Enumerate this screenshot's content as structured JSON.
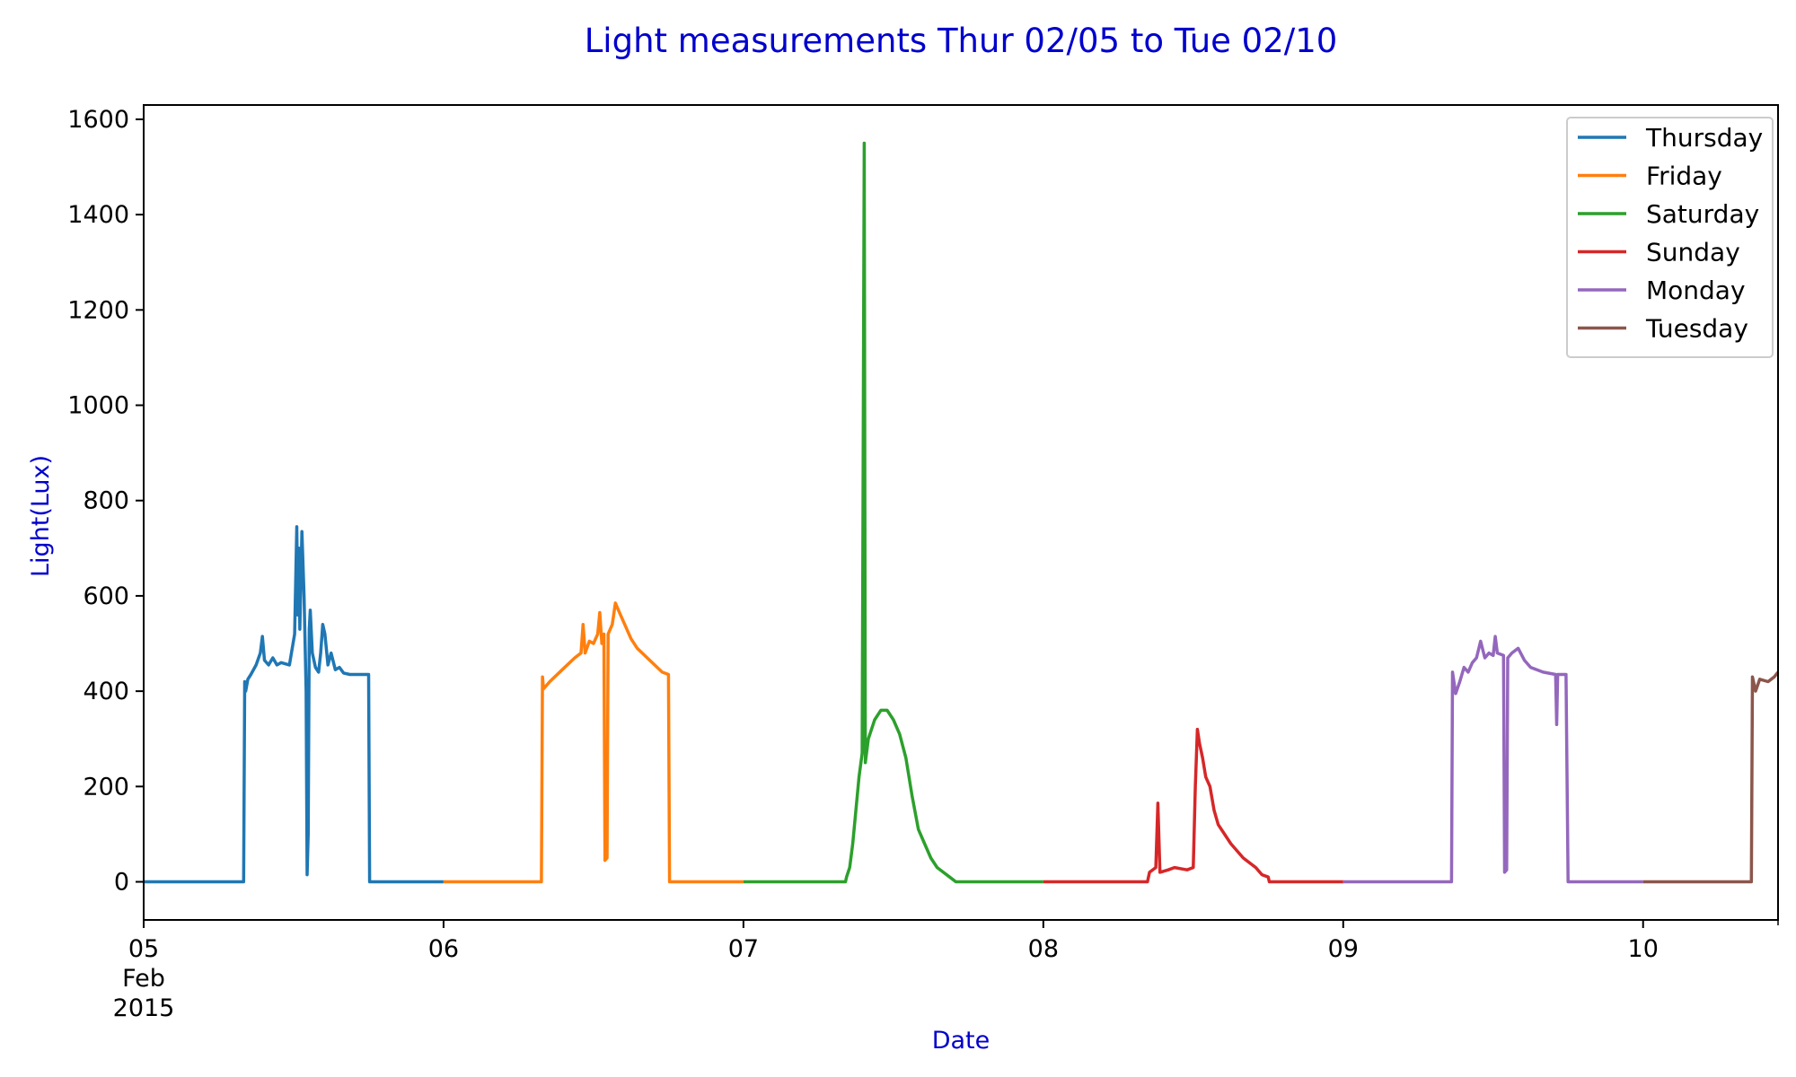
{
  "chart_data": {
    "type": "line",
    "title": "Light measurements Thur 02/05 to Tue 02/10",
    "xlabel": "Date",
    "ylabel": "Light(Lux)",
    "xlim": [
      "2015-02-05T00:00",
      "2015-02-10T10:48"
    ],
    "ylim": [
      -80,
      1630
    ],
    "yticks": [
      0,
      200,
      400,
      600,
      800,
      1000,
      1200,
      1400,
      1600
    ],
    "xticks": [
      {
        "value": "2015-02-05T00:00",
        "label": [
          "05",
          "Feb",
          "2015"
        ]
      },
      {
        "value": "2015-02-06T00:00",
        "label": [
          "06"
        ]
      },
      {
        "value": "2015-02-07T00:00",
        "label": [
          "07"
        ]
      },
      {
        "value": "2015-02-08T00:00",
        "label": [
          "08"
        ]
      },
      {
        "value": "2015-02-09T00:00",
        "label": [
          "09"
        ]
      },
      {
        "value": "2015-02-10T00:00",
        "label": [
          "10"
        ]
      }
    ],
    "grid": false,
    "legend": "top-right",
    "series": [
      {
        "name": "Thursday",
        "color": "#1f77b4",
        "points": [
          [
            "2015-02-05T00:00",
            0
          ],
          [
            "2015-02-05T08:00",
            0
          ],
          [
            "2015-02-05T08:05",
            420
          ],
          [
            "2015-02-05T08:10",
            400
          ],
          [
            "2015-02-05T08:20",
            425
          ],
          [
            "2015-02-05T08:35",
            435
          ],
          [
            "2015-02-05T09:00",
            455
          ],
          [
            "2015-02-05T09:20",
            480
          ],
          [
            "2015-02-05T09:30",
            515
          ],
          [
            "2015-02-05T09:40",
            465
          ],
          [
            "2015-02-05T10:00",
            455
          ],
          [
            "2015-02-05T10:20",
            470
          ],
          [
            "2015-02-05T10:40",
            455
          ],
          [
            "2015-02-05T11:00",
            460
          ],
          [
            "2015-02-05T11:40",
            455
          ],
          [
            "2015-02-05T12:05",
            520
          ],
          [
            "2015-02-05T12:15",
            745
          ],
          [
            "2015-02-05T12:20",
            560
          ],
          [
            "2015-02-05T12:25",
            700
          ],
          [
            "2015-02-05T12:30",
            530
          ],
          [
            "2015-02-05T12:40",
            735
          ],
          [
            "2015-02-05T12:50",
            600
          ],
          [
            "2015-02-05T13:00",
            400
          ],
          [
            "2015-02-05T13:05",
            15
          ],
          [
            "2015-02-05T13:10",
            100
          ],
          [
            "2015-02-05T13:15",
            530
          ],
          [
            "2015-02-05T13:20",
            570
          ],
          [
            "2015-02-05T13:30",
            480
          ],
          [
            "2015-02-05T13:45",
            450
          ],
          [
            "2015-02-05T14:00",
            440
          ],
          [
            "2015-02-05T14:10",
            480
          ],
          [
            "2015-02-05T14:20",
            540
          ],
          [
            "2015-02-05T14:30",
            520
          ],
          [
            "2015-02-05T14:45",
            455
          ],
          [
            "2015-02-05T15:00",
            480
          ],
          [
            "2015-02-05T15:20",
            445
          ],
          [
            "2015-02-05T15:40",
            450
          ],
          [
            "2015-02-05T16:00",
            438
          ],
          [
            "2015-02-05T16:30",
            435
          ],
          [
            "2015-02-05T18:00",
            435
          ],
          [
            "2015-02-05T18:05",
            0
          ],
          [
            "2015-02-06T00:00",
            0
          ]
        ]
      },
      {
        "name": "Friday",
        "color": "#ff7f0e",
        "points": [
          [
            "2015-02-06T00:00",
            0
          ],
          [
            "2015-02-06T07:50",
            0
          ],
          [
            "2015-02-06T07:55",
            430
          ],
          [
            "2015-02-06T08:00",
            405
          ],
          [
            "2015-02-06T08:30",
            420
          ],
          [
            "2015-02-06T09:30",
            445
          ],
          [
            "2015-02-06T10:30",
            470
          ],
          [
            "2015-02-06T11:00",
            480
          ],
          [
            "2015-02-06T11:10",
            540
          ],
          [
            "2015-02-06T11:20",
            480
          ],
          [
            "2015-02-06T11:40",
            505
          ],
          [
            "2015-02-06T12:00",
            500
          ],
          [
            "2015-02-06T12:20",
            520
          ],
          [
            "2015-02-06T12:30",
            565
          ],
          [
            "2015-02-06T12:40",
            500
          ],
          [
            "2015-02-06T12:50",
            520
          ],
          [
            "2015-02-06T12:55",
            45
          ],
          [
            "2015-02-06T13:05",
            50
          ],
          [
            "2015-02-06T13:10",
            520
          ],
          [
            "2015-02-06T13:30",
            540
          ],
          [
            "2015-02-06T13:45",
            585
          ],
          [
            "2015-02-06T14:00",
            570
          ],
          [
            "2015-02-06T14:30",
            540
          ],
          [
            "2015-02-06T15:00",
            510
          ],
          [
            "2015-02-06T15:30",
            490
          ],
          [
            "2015-02-06T16:30",
            465
          ],
          [
            "2015-02-06T17:30",
            440
          ],
          [
            "2015-02-06T18:00",
            435
          ],
          [
            "2015-02-06T18:05",
            0
          ],
          [
            "2015-02-07T00:00",
            0
          ]
        ]
      },
      {
        "name": "Saturday",
        "color": "#2ca02c",
        "points": [
          [
            "2015-02-07T00:00",
            0
          ],
          [
            "2015-02-07T08:10",
            0
          ],
          [
            "2015-02-07T08:15",
            10
          ],
          [
            "2015-02-07T08:30",
            30
          ],
          [
            "2015-02-07T08:45",
            80
          ],
          [
            "2015-02-07T09:00",
            150
          ],
          [
            "2015-02-07T09:15",
            220
          ],
          [
            "2015-02-07T09:30",
            270
          ],
          [
            "2015-02-07T09:40",
            1550
          ],
          [
            "2015-02-07T09:45",
            250
          ],
          [
            "2015-02-07T10:00",
            300
          ],
          [
            "2015-02-07T10:30",
            340
          ],
          [
            "2015-02-07T11:00",
            360
          ],
          [
            "2015-02-07T11:30",
            360
          ],
          [
            "2015-02-07T12:00",
            340
          ],
          [
            "2015-02-07T12:30",
            310
          ],
          [
            "2015-02-07T13:00",
            260
          ],
          [
            "2015-02-07T13:30",
            180
          ],
          [
            "2015-02-07T14:00",
            110
          ],
          [
            "2015-02-07T14:30",
            80
          ],
          [
            "2015-02-07T15:00",
            50
          ],
          [
            "2015-02-07T15:30",
            30
          ],
          [
            "2015-02-07T16:00",
            20
          ],
          [
            "2015-02-07T16:30",
            10
          ],
          [
            "2015-02-07T17:00",
            0
          ],
          [
            "2015-02-08T00:00",
            0
          ]
        ]
      },
      {
        "name": "Sunday",
        "color": "#d62728",
        "points": [
          [
            "2015-02-08T00:00",
            0
          ],
          [
            "2015-02-08T08:20",
            0
          ],
          [
            "2015-02-08T08:30",
            20
          ],
          [
            "2015-02-08T09:00",
            30
          ],
          [
            "2015-02-08T09:10",
            165
          ],
          [
            "2015-02-08T09:20",
            20
          ],
          [
            "2015-02-08T10:00",
            25
          ],
          [
            "2015-02-08T10:30",
            30
          ],
          [
            "2015-02-08T11:30",
            25
          ],
          [
            "2015-02-08T12:00",
            30
          ],
          [
            "2015-02-08T12:10",
            200
          ],
          [
            "2015-02-08T12:20",
            320
          ],
          [
            "2015-02-08T12:30",
            290
          ],
          [
            "2015-02-08T12:45",
            260
          ],
          [
            "2015-02-08T13:00",
            220
          ],
          [
            "2015-02-08T13:20",
            200
          ],
          [
            "2015-02-08T13:40",
            150
          ],
          [
            "2015-02-08T14:00",
            120
          ],
          [
            "2015-02-08T14:30",
            100
          ],
          [
            "2015-02-08T15:00",
            80
          ],
          [
            "2015-02-08T16:00",
            50
          ],
          [
            "2015-02-08T17:00",
            30
          ],
          [
            "2015-02-08T17:30",
            15
          ],
          [
            "2015-02-08T18:00",
            10
          ],
          [
            "2015-02-08T18:05",
            0
          ],
          [
            "2015-02-09T00:00",
            0
          ]
        ]
      },
      {
        "name": "Monday",
        "color": "#9467bd",
        "points": [
          [
            "2015-02-09T00:00",
            0
          ],
          [
            "2015-02-09T08:40",
            0
          ],
          [
            "2015-02-09T08:45",
            440
          ],
          [
            "2015-02-09T09:00",
            395
          ],
          [
            "2015-02-09T09:20",
            420
          ],
          [
            "2015-02-09T09:40",
            450
          ],
          [
            "2015-02-09T10:00",
            440
          ],
          [
            "2015-02-09T10:20",
            460
          ],
          [
            "2015-02-09T10:40",
            470
          ],
          [
            "2015-02-09T11:00",
            505
          ],
          [
            "2015-02-09T11:20",
            470
          ],
          [
            "2015-02-09T11:40",
            480
          ],
          [
            "2015-02-09T12:00",
            475
          ],
          [
            "2015-02-09T12:10",
            515
          ],
          [
            "2015-02-09T12:20",
            480
          ],
          [
            "2015-02-09T12:50",
            475
          ],
          [
            "2015-02-09T12:55",
            20
          ],
          [
            "2015-02-09T13:05",
            25
          ],
          [
            "2015-02-09T13:10",
            470
          ],
          [
            "2015-02-09T13:30",
            480
          ],
          [
            "2015-02-09T14:00",
            490
          ],
          [
            "2015-02-09T14:30",
            465
          ],
          [
            "2015-02-09T15:00",
            450
          ],
          [
            "2015-02-09T16:00",
            440
          ],
          [
            "2015-02-09T17:00",
            435
          ],
          [
            "2015-02-09T17:05",
            330
          ],
          [
            "2015-02-09T17:10",
            435
          ],
          [
            "2015-02-09T17:50",
            435
          ],
          [
            "2015-02-09T18:00",
            0
          ],
          [
            "2015-02-10T00:00",
            0
          ]
        ]
      },
      {
        "name": "Tuesday",
        "color": "#8c564b",
        "points": [
          [
            "2015-02-10T00:00",
            0
          ],
          [
            "2015-02-10T08:40",
            0
          ],
          [
            "2015-02-10T08:45",
            430
          ],
          [
            "2015-02-10T09:00",
            400
          ],
          [
            "2015-02-10T09:20",
            425
          ],
          [
            "2015-02-10T10:00",
            420
          ],
          [
            "2015-02-10T10:30",
            430
          ],
          [
            "2015-02-10T10:48",
            440
          ]
        ]
      }
    ]
  }
}
